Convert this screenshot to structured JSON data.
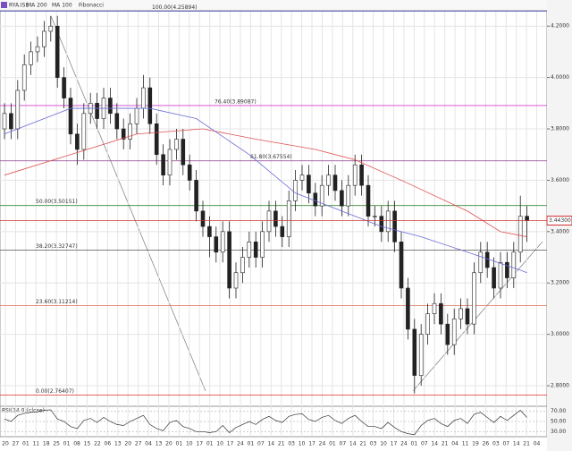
{
  "chart_data": {
    "type": "candlestick",
    "symbol": "RYA.ISE",
    "indicator_label": "Fibonacci",
    "open": [
      3.8,
      3.86,
      3.8,
      3.95,
      4.05,
      4.1,
      4.12,
      4.18,
      4.2,
      4.0,
      3.92,
      3.78,
      3.72,
      3.86,
      3.9,
      3.84,
      3.92,
      3.86,
      3.8,
      3.76,
      3.82,
      3.88,
      3.96,
      3.82,
      3.7,
      3.62,
      3.72,
      3.76,
      3.66,
      3.6,
      3.48,
      3.42,
      3.38,
      3.32,
      3.4,
      3.18,
      3.24,
      3.3,
      3.36,
      3.3,
      3.4,
      3.48,
      3.42,
      3.38,
      3.52,
      3.6,
      3.62,
      3.55,
      3.5,
      3.58,
      3.62,
      3.56,
      3.5,
      3.58,
      3.66,
      3.58,
      3.46,
      3.46,
      3.4,
      3.48,
      3.36,
      3.18,
      3.02,
      2.84,
      3.0,
      3.08,
      3.12,
      3.04,
      2.96,
      3.06,
      3.1,
      3.04,
      3.24,
      3.32,
      3.26,
      3.18,
      3.28,
      3.22,
      3.32,
      3.46
    ],
    "high": [
      3.9,
      3.9,
      3.99,
      4.09,
      4.14,
      4.16,
      4.22,
      4.24,
      4.24,
      4.04,
      3.96,
      3.82,
      3.9,
      3.94,
      3.94,
      3.96,
      3.96,
      3.9,
      3.84,
      3.86,
      3.92,
      4.01,
      4.0,
      3.86,
      3.74,
      3.76,
      3.8,
      3.8,
      3.7,
      3.64,
      3.52,
      3.46,
      3.42,
      3.44,
      3.44,
      3.28,
      3.34,
      3.4,
      3.4,
      3.44,
      3.52,
      3.52,
      3.46,
      3.56,
      3.64,
      3.66,
      3.66,
      3.59,
      3.62,
      3.66,
      3.66,
      3.6,
      3.62,
      3.7,
      3.7,
      3.62,
      3.5,
      3.5,
      3.52,
      3.52,
      3.4,
      3.22,
      3.06,
      3.04,
      3.12,
      3.16,
      3.16,
      3.08,
      3.1,
      3.14,
      3.14,
      3.28,
      3.36,
      3.36,
      3.3,
      3.32,
      3.32,
      3.36,
      3.54,
      3.5
    ],
    "low": [
      3.76,
      3.76,
      3.76,
      3.91,
      4.01,
      4.06,
      4.08,
      4.14,
      3.96,
      3.88,
      3.74,
      3.66,
      3.68,
      3.82,
      3.8,
      3.8,
      3.82,
      3.76,
      3.72,
      3.72,
      3.78,
      3.84,
      3.78,
      3.66,
      3.58,
      3.58,
      3.68,
      3.62,
      3.56,
      3.44,
      3.38,
      3.3,
      3.28,
      3.28,
      3.14,
      3.14,
      3.2,
      3.26,
      3.26,
      3.26,
      3.36,
      3.38,
      3.34,
      3.34,
      3.48,
      3.56,
      3.51,
      3.46,
      3.46,
      3.54,
      3.52,
      3.46,
      3.46,
      3.54,
      3.54,
      3.42,
      3.42,
      3.36,
      3.36,
      3.32,
      3.14,
      2.98,
      2.77,
      2.8,
      2.96,
      3.04,
      3.0,
      2.92,
      2.92,
      3.02,
      3.0,
      3.0,
      3.2,
      3.22,
      3.14,
      3.14,
      3.18,
      3.18,
      3.28,
      3.36
    ],
    "close": [
      3.86,
      3.8,
      3.95,
      4.05,
      4.1,
      4.12,
      4.18,
      4.2,
      4.0,
      3.92,
      3.78,
      3.72,
      3.86,
      3.9,
      3.84,
      3.92,
      3.86,
      3.8,
      3.76,
      3.82,
      3.88,
      3.96,
      3.82,
      3.7,
      3.62,
      3.72,
      3.76,
      3.66,
      3.6,
      3.48,
      3.42,
      3.38,
      3.32,
      3.4,
      3.18,
      3.24,
      3.3,
      3.36,
      3.3,
      3.4,
      3.48,
      3.42,
      3.38,
      3.52,
      3.6,
      3.62,
      3.55,
      3.5,
      3.58,
      3.62,
      3.56,
      3.5,
      3.58,
      3.66,
      3.58,
      3.46,
      3.46,
      3.4,
      3.48,
      3.36,
      3.18,
      3.02,
      2.84,
      3.0,
      3.08,
      3.12,
      3.04,
      2.96,
      3.06,
      3.1,
      3.04,
      3.24,
      3.32,
      3.26,
      3.18,
      3.28,
      3.22,
      3.32,
      3.46,
      3.443
    ],
    "series": [
      {
        "name": "MA 200",
        "color": "#e05050",
        "x": [
          0,
          10,
          20,
          30,
          38,
          47,
          53,
          60,
          70,
          75,
          79
        ],
        "values": [
          3.62,
          3.7,
          3.78,
          3.8,
          3.76,
          3.72,
          3.68,
          3.6,
          3.48,
          3.4,
          3.38
        ]
      },
      {
        "name": "MA 100",
        "color": "#6a6ad8",
        "x": [
          0,
          10,
          22,
          29,
          37,
          44,
          51,
          57,
          63,
          70,
          78,
          79
        ],
        "values": [
          3.78,
          3.88,
          3.88,
          3.84,
          3.7,
          3.55,
          3.48,
          3.42,
          3.38,
          3.32,
          3.25,
          3.24
        ]
      }
    ],
    "ylim": [
      2.72,
      4.26
    ],
    "yticks": [
      {
        "value": 2.8,
        "label": "2.8000"
      },
      {
        "value": 3.0,
        "label": "3.0000"
      },
      {
        "value": 3.2,
        "label": "3.2000"
      },
      {
        "value": 3.4,
        "label": "3.4000"
      },
      {
        "value": 3.6,
        "label": "3.6000"
      },
      {
        "value": 3.8,
        "label": "3.8000"
      },
      {
        "value": 4.0,
        "label": "4.0000"
      },
      {
        "value": 4.2,
        "label": "4.2000"
      }
    ],
    "last": {
      "value": 3.443,
      "label": "3.44300"
    },
    "fibonacci": [
      {
        "label": "100.00(4.25894)",
        "value": 4.25894,
        "color": "#3a3aa0"
      },
      {
        "label": "76.40(3.89087)",
        "value": 3.89087,
        "color": "#d040d0"
      },
      {
        "label": "61.80(3.67554)",
        "value": 3.67554,
        "color": "#8a3a8a"
      },
      {
        "label": "50.00(3.50151)",
        "value": 3.50151,
        "color": "#3a8a3a"
      },
      {
        "label": "38.20(3.32747)",
        "value": 3.32747,
        "color": "#555555"
      },
      {
        "label": "23.60(3.11214)",
        "value": 3.11214,
        "color": "#e08070"
      },
      {
        "label": "0.00(2.76407)",
        "value": 2.76407,
        "color": "#e03030"
      }
    ],
    "rsi": {
      "label": "RSI(14.0)(close)",
      "color": "#333333",
      "values": [
        55,
        50,
        62,
        66,
        68,
        69,
        72,
        73,
        55,
        50,
        40,
        36,
        52,
        56,
        48,
        58,
        50,
        44,
        42,
        50,
        56,
        62,
        44,
        36,
        32,
        48,
        52,
        40,
        36,
        30,
        30,
        28,
        30,
        42,
        28,
        38,
        44,
        50,
        44,
        54,
        60,
        52,
        48,
        60,
        64,
        65,
        54,
        50,
        58,
        62,
        52,
        46,
        56,
        62,
        50,
        40,
        40,
        36,
        48,
        38,
        30,
        26,
        24,
        42,
        52,
        56,
        46,
        40,
        52,
        56,
        46,
        64,
        68,
        58,
        48,
        60,
        52,
        62,
        72,
        58
      ],
      "ylim": [
        20,
        80
      ],
      "yticks": [
        {
          "value": 30,
          "label": "30.00"
        },
        {
          "value": 50,
          "label": "50.00"
        },
        {
          "value": 70,
          "label": "70.00"
        }
      ]
    },
    "x_labels": [
      "20",
      "27",
      "01",
      "11",
      "18",
      "25",
      "01",
      "08",
      "15",
      "22",
      "06",
      "13",
      "20",
      "27",
      "04",
      "13",
      "20",
      "01",
      "10",
      "17",
      "01",
      "10",
      "17",
      "24",
      "01",
      "07",
      "14",
      "21",
      "03",
      "10",
      "17",
      "24",
      "01",
      "07",
      "14",
      "21",
      "03",
      "10",
      "17",
      "24",
      "01",
      "07",
      "14",
      "21",
      "04",
      "11",
      "19",
      "26",
      "03",
      "07",
      "14",
      "21",
      "04"
    ]
  }
}
